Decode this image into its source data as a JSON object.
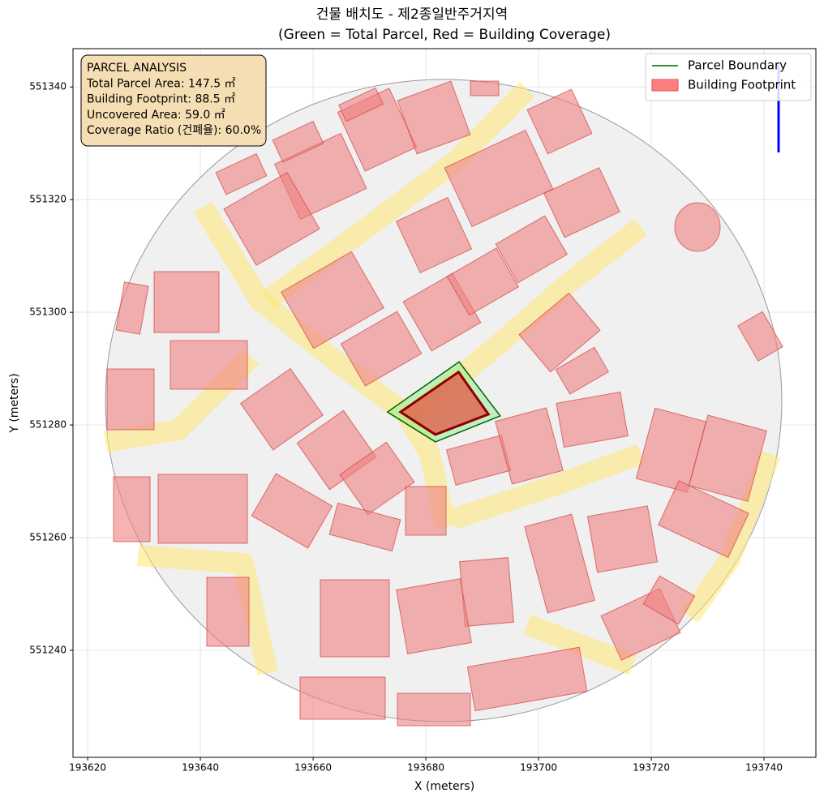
{
  "chart_data": {
    "type": "map",
    "title": "건물 배치도 - 제2종일반주거지역",
    "subtitle": "(Green = Total Parcel, Red = Building Coverage)",
    "x_label": "X (meters)",
    "y_label": "Y (meters)",
    "xlim": [
      193617.4,
      193749.2
    ],
    "ylim": [
      551221.0,
      551346.8
    ],
    "xticks": [
      193620,
      193640,
      193660,
      193680,
      193700,
      193720,
      193740
    ],
    "yticks": [
      551240,
      551260,
      551280,
      551300,
      551320,
      551340
    ],
    "grid": true,
    "legend": "upper right",
    "annotation": [
      "PARCEL ANALYSIS",
      "Total Parcel Area: 147.5 ㎡",
      "Building Footprint: 88.5 ㎡",
      "Uncovered Area: 59.0 ㎡",
      "Coverage Ratio (건폐율): 60.0%"
    ],
    "series": [
      {
        "name": "Parcel Boundary",
        "color": "#006400",
        "fill": "#90ee90",
        "x": [
          193673.2,
          193685.9,
          193693.2,
          193681.7
        ],
        "y": [
          551282.3,
          551291.2,
          551281.6,
          551277.0
        ]
      },
      {
        "name": "Building Footprint",
        "color": "#8b0000",
        "fill": "#e0604e",
        "x": [
          193675.5,
          193685.8,
          193691.1,
          193681.7
        ],
        "y": [
          551282.3,
          551289.4,
          551281.9,
          551278.3
        ]
      }
    ]
  }
}
